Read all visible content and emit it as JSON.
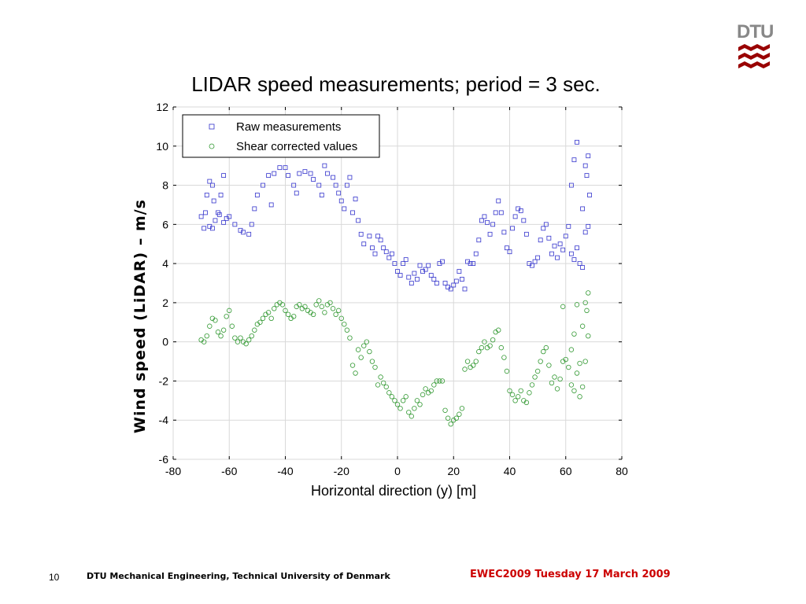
{
  "logo": {
    "text": "DTU",
    "icon": "dtu-logo-icon",
    "color": "#990000",
    "text_color": "#888888"
  },
  "footer": {
    "page_number": "10",
    "organization": "DTU Mechanical Engineering, Technical University of Denmark",
    "event": "EWEC2009 Tuesday 17 March 2009"
  },
  "chart_data": {
    "type": "scatter",
    "title": "LIDAR speed measurements; period = 3 sec.",
    "xlabel": "Horizontal direction (y) [m]",
    "ylabel": "Wind speed (LiDAR) – m/s",
    "xlim": [
      -80,
      80
    ],
    "ylim": [
      -6,
      12
    ],
    "xticks": [
      -80,
      -60,
      -40,
      -20,
      0,
      20,
      40,
      60,
      80
    ],
    "yticks": [
      -6,
      -4,
      -2,
      0,
      2,
      4,
      6,
      8,
      10,
      12
    ],
    "grid": true,
    "legend_position": "top-left",
    "series": [
      {
        "name": "Raw measurements",
        "marker": "square",
        "color": "#3333cc",
        "points": [
          [
            -70,
            6.4
          ],
          [
            -69,
            5.8
          ],
          [
            -68.5,
            6.6
          ],
          [
            -68,
            7.5
          ],
          [
            -67,
            8.2
          ],
          [
            -66,
            8.0
          ],
          [
            -65.5,
            7.2
          ],
          [
            -65,
            6.2
          ],
          [
            -66,
            5.8
          ],
          [
            -67,
            5.9
          ],
          [
            -64,
            6.6
          ],
          [
            -63,
            7.5
          ],
          [
            -62,
            8.5
          ],
          [
            -63.5,
            6.5
          ],
          [
            -62,
            6.1
          ],
          [
            -61,
            6.3
          ],
          [
            -60,
            6.4
          ],
          [
            -58,
            6.0
          ],
          [
            -56,
            5.7
          ],
          [
            -55,
            5.6
          ],
          [
            -53,
            5.5
          ],
          [
            -52,
            6.0
          ],
          [
            -51,
            6.8
          ],
          [
            -50,
            7.5
          ],
          [
            -48,
            8.0
          ],
          [
            -46,
            8.5
          ],
          [
            -45,
            7.0
          ],
          [
            -44,
            8.6
          ],
          [
            -42,
            8.9
          ],
          [
            -40,
            8.9
          ],
          [
            -39,
            8.5
          ],
          [
            -37,
            8.0
          ],
          [
            -36,
            7.6
          ],
          [
            -35,
            8.6
          ],
          [
            -33,
            8.7
          ],
          [
            -31,
            8.6
          ],
          [
            -30,
            8.3
          ],
          [
            -28,
            8.0
          ],
          [
            -27,
            7.5
          ],
          [
            -26,
            9.0
          ],
          [
            -25,
            8.6
          ],
          [
            -23,
            8.4
          ],
          [
            -22,
            8.0
          ],
          [
            -21,
            7.6
          ],
          [
            -20,
            7.2
          ],
          [
            -19,
            6.8
          ],
          [
            -18,
            8.0
          ],
          [
            -17,
            8.4
          ],
          [
            -16,
            6.6
          ],
          [
            -15,
            7.3
          ],
          [
            -14,
            6.2
          ],
          [
            -13,
            5.5
          ],
          [
            -12,
            5.0
          ],
          [
            -10,
            5.4
          ],
          [
            -9,
            4.8
          ],
          [
            -8,
            4.5
          ],
          [
            -7,
            5.4
          ],
          [
            -6,
            5.2
          ],
          [
            -5,
            4.8
          ],
          [
            -4,
            4.6
          ],
          [
            -3,
            4.3
          ],
          [
            -2,
            4.5
          ],
          [
            -1,
            4.0
          ],
          [
            0,
            3.6
          ],
          [
            1,
            3.4
          ],
          [
            2,
            4.0
          ],
          [
            3,
            4.2
          ],
          [
            4,
            3.3
          ],
          [
            5,
            3.0
          ],
          [
            6,
            3.5
          ],
          [
            7,
            3.2
          ],
          [
            8,
            3.9
          ],
          [
            9,
            3.6
          ],
          [
            10,
            3.7
          ],
          [
            11,
            3.9
          ],
          [
            12,
            3.4
          ],
          [
            13,
            3.2
          ],
          [
            14,
            3.0
          ],
          [
            15,
            4.0
          ],
          [
            16,
            4.1
          ],
          [
            17,
            3.0
          ],
          [
            18,
            2.8
          ],
          [
            19,
            2.7
          ],
          [
            20,
            2.9
          ],
          [
            21,
            3.1
          ],
          [
            22,
            3.6
          ],
          [
            23,
            3.2
          ],
          [
            24,
            2.7
          ],
          [
            25,
            4.1
          ],
          [
            26,
            4.0
          ],
          [
            27,
            4.0
          ],
          [
            28,
            4.5
          ],
          [
            29,
            5.2
          ],
          [
            30,
            6.2
          ],
          [
            31,
            6.4
          ],
          [
            32,
            6.1
          ],
          [
            33,
            5.5
          ],
          [
            34,
            6.0
          ],
          [
            35,
            6.6
          ],
          [
            36,
            7.2
          ],
          [
            37,
            6.6
          ],
          [
            38,
            5.6
          ],
          [
            39,
            4.8
          ],
          [
            40,
            4.6
          ],
          [
            41,
            5.8
          ],
          [
            42,
            6.4
          ],
          [
            43,
            6.8
          ],
          [
            44,
            6.7
          ],
          [
            45,
            6.2
          ],
          [
            46,
            5.5
          ],
          [
            47,
            4.0
          ],
          [
            48,
            3.9
          ],
          [
            49,
            4.1
          ],
          [
            50,
            4.3
          ],
          [
            51,
            5.2
          ],
          [
            52,
            5.8
          ],
          [
            53,
            6.0
          ],
          [
            54,
            5.3
          ],
          [
            55,
            4.5
          ],
          [
            56,
            4.9
          ],
          [
            57,
            4.3
          ],
          [
            58,
            5.0
          ],
          [
            59,
            4.7
          ],
          [
            60,
            5.4
          ],
          [
            61,
            5.9
          ],
          [
            62,
            4.5
          ],
          [
            63,
            4.2
          ],
          [
            64,
            4.8
          ],
          [
            65,
            4.0
          ],
          [
            66,
            3.8
          ],
          [
            67,
            5.6
          ],
          [
            68,
            5.9
          ],
          [
            68.5,
            7.5
          ],
          [
            67.5,
            8.5
          ],
          [
            68,
            9.5
          ],
          [
            67,
            9.0
          ],
          [
            63,
            9.3
          ],
          [
            64,
            10.2
          ],
          [
            62,
            8.0
          ],
          [
            66,
            6.8
          ]
        ]
      },
      {
        "name": "Shear corrected values",
        "marker": "circle",
        "color": "#339933",
        "points": [
          [
            -70,
            0.1
          ],
          [
            -69,
            0.0
          ],
          [
            -68,
            0.3
          ],
          [
            -67,
            0.8
          ],
          [
            -66,
            1.2
          ],
          [
            -65,
            1.1
          ],
          [
            -64,
            0.5
          ],
          [
            -63,
            0.3
          ],
          [
            -62,
            0.6
          ],
          [
            -61,
            1.3
          ],
          [
            -60,
            1.6
          ],
          [
            -59,
            0.8
          ],
          [
            -58,
            0.2
          ],
          [
            -57,
            0.0
          ],
          [
            -56,
            0.2
          ],
          [
            -55,
            0.0
          ],
          [
            -54,
            -0.1
          ],
          [
            -53,
            0.1
          ],
          [
            -52,
            0.3
          ],
          [
            -51,
            0.6
          ],
          [
            -50,
            0.9
          ],
          [
            -49,
            1.0
          ],
          [
            -48,
            1.2
          ],
          [
            -47,
            1.4
          ],
          [
            -46,
            1.5
          ],
          [
            -45,
            1.2
          ],
          [
            -44,
            1.7
          ],
          [
            -43,
            1.9
          ],
          [
            -42,
            2.0
          ],
          [
            -41,
            1.9
          ],
          [
            -40,
            1.6
          ],
          [
            -39,
            1.4
          ],
          [
            -38,
            1.2
          ],
          [
            -37,
            1.3
          ],
          [
            -36,
            1.8
          ],
          [
            -35,
            1.9
          ],
          [
            -34,
            1.7
          ],
          [
            -33,
            1.8
          ],
          [
            -32,
            1.6
          ],
          [
            -31,
            1.5
          ],
          [
            -30,
            1.4
          ],
          [
            -29,
            1.9
          ],
          [
            -28,
            2.1
          ],
          [
            -27,
            1.8
          ],
          [
            -26,
            1.5
          ],
          [
            -25,
            1.9
          ],
          [
            -24,
            2.0
          ],
          [
            -23,
            1.7
          ],
          [
            -22,
            1.4
          ],
          [
            -21,
            1.6
          ],
          [
            -20,
            1.2
          ],
          [
            -19,
            0.9
          ],
          [
            -18,
            0.6
          ],
          [
            -17,
            0.2
          ],
          [
            -16,
            -1.2
          ],
          [
            -15,
            -1.6
          ],
          [
            -14,
            -0.4
          ],
          [
            -13,
            -0.8
          ],
          [
            -12,
            -0.2
          ],
          [
            -11,
            0.0
          ],
          [
            -10,
            -0.5
          ],
          [
            -9,
            -1.0
          ],
          [
            -8,
            -1.3
          ],
          [
            -7,
            -2.2
          ],
          [
            -6,
            -1.8
          ],
          [
            -5,
            -2.1
          ],
          [
            -4,
            -2.3
          ],
          [
            -3,
            -2.6
          ],
          [
            -2,
            -2.8
          ],
          [
            -1,
            -3.0
          ],
          [
            0,
            -3.2
          ],
          [
            1,
            -3.4
          ],
          [
            2,
            -3.0
          ],
          [
            3,
            -2.8
          ],
          [
            4,
            -3.6
          ],
          [
            5,
            -3.8
          ],
          [
            6,
            -3.4
          ],
          [
            7,
            -3.0
          ],
          [
            8,
            -3.2
          ],
          [
            9,
            -2.7
          ],
          [
            10,
            -2.4
          ],
          [
            11,
            -2.6
          ],
          [
            12,
            -2.5
          ],
          [
            13,
            -2.2
          ],
          [
            14,
            -2.0
          ],
          [
            15,
            -2.0
          ],
          [
            16,
            -2.0
          ],
          [
            17,
            -3.5
          ],
          [
            18,
            -3.9
          ],
          [
            19,
            -4.2
          ],
          [
            20,
            -4.0
          ],
          [
            21,
            -3.9
          ],
          [
            22,
            -3.7
          ],
          [
            23,
            -3.4
          ],
          [
            24,
            -1.4
          ],
          [
            25,
            -1.0
          ],
          [
            26,
            -1.3
          ],
          [
            27,
            -1.2
          ],
          [
            28,
            -1.0
          ],
          [
            29,
            -0.5
          ],
          [
            30,
            -0.3
          ],
          [
            31,
            0.0
          ],
          [
            32,
            -0.3
          ],
          [
            33,
            -0.2
          ],
          [
            34,
            0.1
          ],
          [
            35,
            0.5
          ],
          [
            36,
            0.6
          ],
          [
            37,
            -0.3
          ],
          [
            38,
            -0.8
          ],
          [
            39,
            -1.5
          ],
          [
            40,
            -2.5
          ],
          [
            41,
            -2.7
          ],
          [
            42,
            -3.0
          ],
          [
            43,
            -2.8
          ],
          [
            44,
            -2.5
          ],
          [
            45,
            -3.0
          ],
          [
            46,
            -3.1
          ],
          [
            47,
            -2.6
          ],
          [
            48,
            -2.2
          ],
          [
            49,
            -1.8
          ],
          [
            50,
            -1.5
          ],
          [
            51,
            -1.0
          ],
          [
            52,
            -0.5
          ],
          [
            53,
            -0.3
          ],
          [
            54,
            -1.2
          ],
          [
            55,
            -2.1
          ],
          [
            56,
            -1.8
          ],
          [
            57,
            -2.4
          ],
          [
            58,
            -1.9
          ],
          [
            59,
            -1.0
          ],
          [
            60,
            -0.9
          ],
          [
            61,
            -1.3
          ],
          [
            62,
            -2.2
          ],
          [
            63,
            -2.5
          ],
          [
            64,
            -1.6
          ],
          [
            65,
            -2.8
          ],
          [
            66,
            -2.3
          ],
          [
            67,
            -1.0
          ],
          [
            68,
            0.3
          ],
          [
            67.5,
            1.6
          ],
          [
            68,
            2.5
          ],
          [
            67,
            2.0
          ],
          [
            66,
            0.8
          ],
          [
            65,
            -1.1
          ],
          [
            63,
            0.4
          ],
          [
            64,
            1.9
          ],
          [
            62,
            -0.4
          ],
          [
            59,
            1.8
          ]
        ]
      }
    ]
  }
}
